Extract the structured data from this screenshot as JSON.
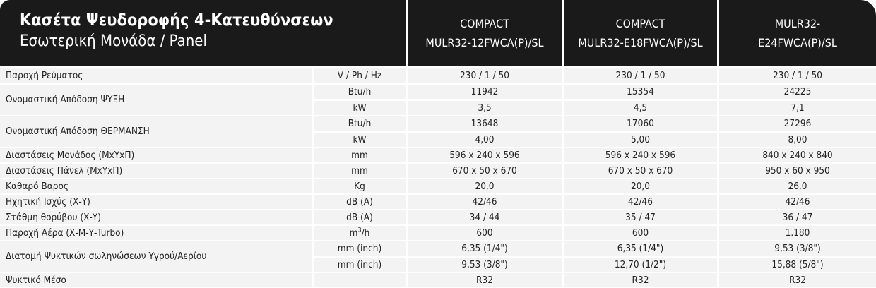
{
  "header": {
    "title": "Κασέτα Ψευδοροφής 4-Κατευθύνσεων",
    "subtitle": "Εσωτερική Μονάδα / Panel",
    "models": [
      {
        "line1": "COMPACT",
        "line2": "MULR32-12FWCA(P)/SL"
      },
      {
        "line1": "COMPACT",
        "line2": "MULR32-E18FWCA(P)/SL"
      },
      {
        "line1": "MULR32-",
        "line2": "E24FWCA(P)/SL"
      }
    ]
  },
  "rows": [
    {
      "label": "Παροχή Ρεύματος",
      "unit": "V / Ph / Hz",
      "v": [
        "230 / 1 / 50",
        "230 / 1 / 50",
        "230 / 1 / 50"
      ]
    },
    {
      "label": "Ονομαστική Απόδοση ΨΥΞΗ",
      "unit": "Btu/h",
      "v": [
        "11942",
        "15354",
        "24225"
      ]
    },
    {
      "label": "",
      "unit": "kW",
      "v": [
        "3,5",
        "4,5",
        "7,1"
      ]
    },
    {
      "label": "Ονομαστική Απόδοση ΘΕΡΜΑΝΣΗ",
      "unit": "Btu/h",
      "v": [
        "13648",
        "17060",
        "27296"
      ]
    },
    {
      "label": "",
      "unit": "kW",
      "v": [
        "4,00",
        "5,00",
        "8,00"
      ]
    },
    {
      "label": "Διαστάσεις Μονάδος (ΜxΥxΠ)",
      "unit": "mm",
      "v": [
        "596 x 240 x 596",
        "596 x 240 x 596",
        "840 x 240 x 840"
      ]
    },
    {
      "label": "Διαστάσεις Πάνελ (ΜxΥxΠ)",
      "unit": "mm",
      "v": [
        "670 x 50 x 670",
        "670 x 50 x 670",
        "950 x 60 x 950"
      ]
    },
    {
      "label": "Καθαρό Βαρος",
      "unit": "Kg",
      "v": [
        "20,0",
        "20,0",
        "26,0"
      ]
    },
    {
      "label": "Ηχητική Ισχύς (Χ-Υ)",
      "unit": "dB (A)",
      "v": [
        "42/46",
        "42/46",
        "42/46"
      ]
    },
    {
      "label": "Στάθμη θορύβου (Χ-Υ)",
      "unit": "dB (A)",
      "v": [
        "34 / 44",
        "35 / 47",
        "36 / 47"
      ]
    },
    {
      "label": "Παροχή Αέρα (Χ-Μ-Υ-Turbo)",
      "unit": "m",
      "unit_sup": "3",
      "unit_after": "/h",
      "v": [
        "600",
        "600",
        "1.180"
      ]
    },
    {
      "label": "Διατομή Ψυκτικών σωληνώσεων Υγρού/Αερίου",
      "unit": "mm (inch)",
      "v": [
        "6,35 (1/4\")",
        "6,35 (1/4\")",
        "9,53 (3/8\")"
      ]
    },
    {
      "label": "",
      "unit": "mm (inch)",
      "v": [
        "9,53 (3/8\")",
        "12,70 (1/2\")",
        "15,88 (5/8\")"
      ]
    },
    {
      "label": "Ψυκτικό Μέσο",
      "unit": "",
      "v": [
        "R32",
        "R32",
        "R32"
      ]
    }
  ],
  "colors": {
    "header_bg": "#1a1a1a",
    "header_text": "#ffffff",
    "cell_bg": "#f3f3f3",
    "text": "#222222"
  }
}
